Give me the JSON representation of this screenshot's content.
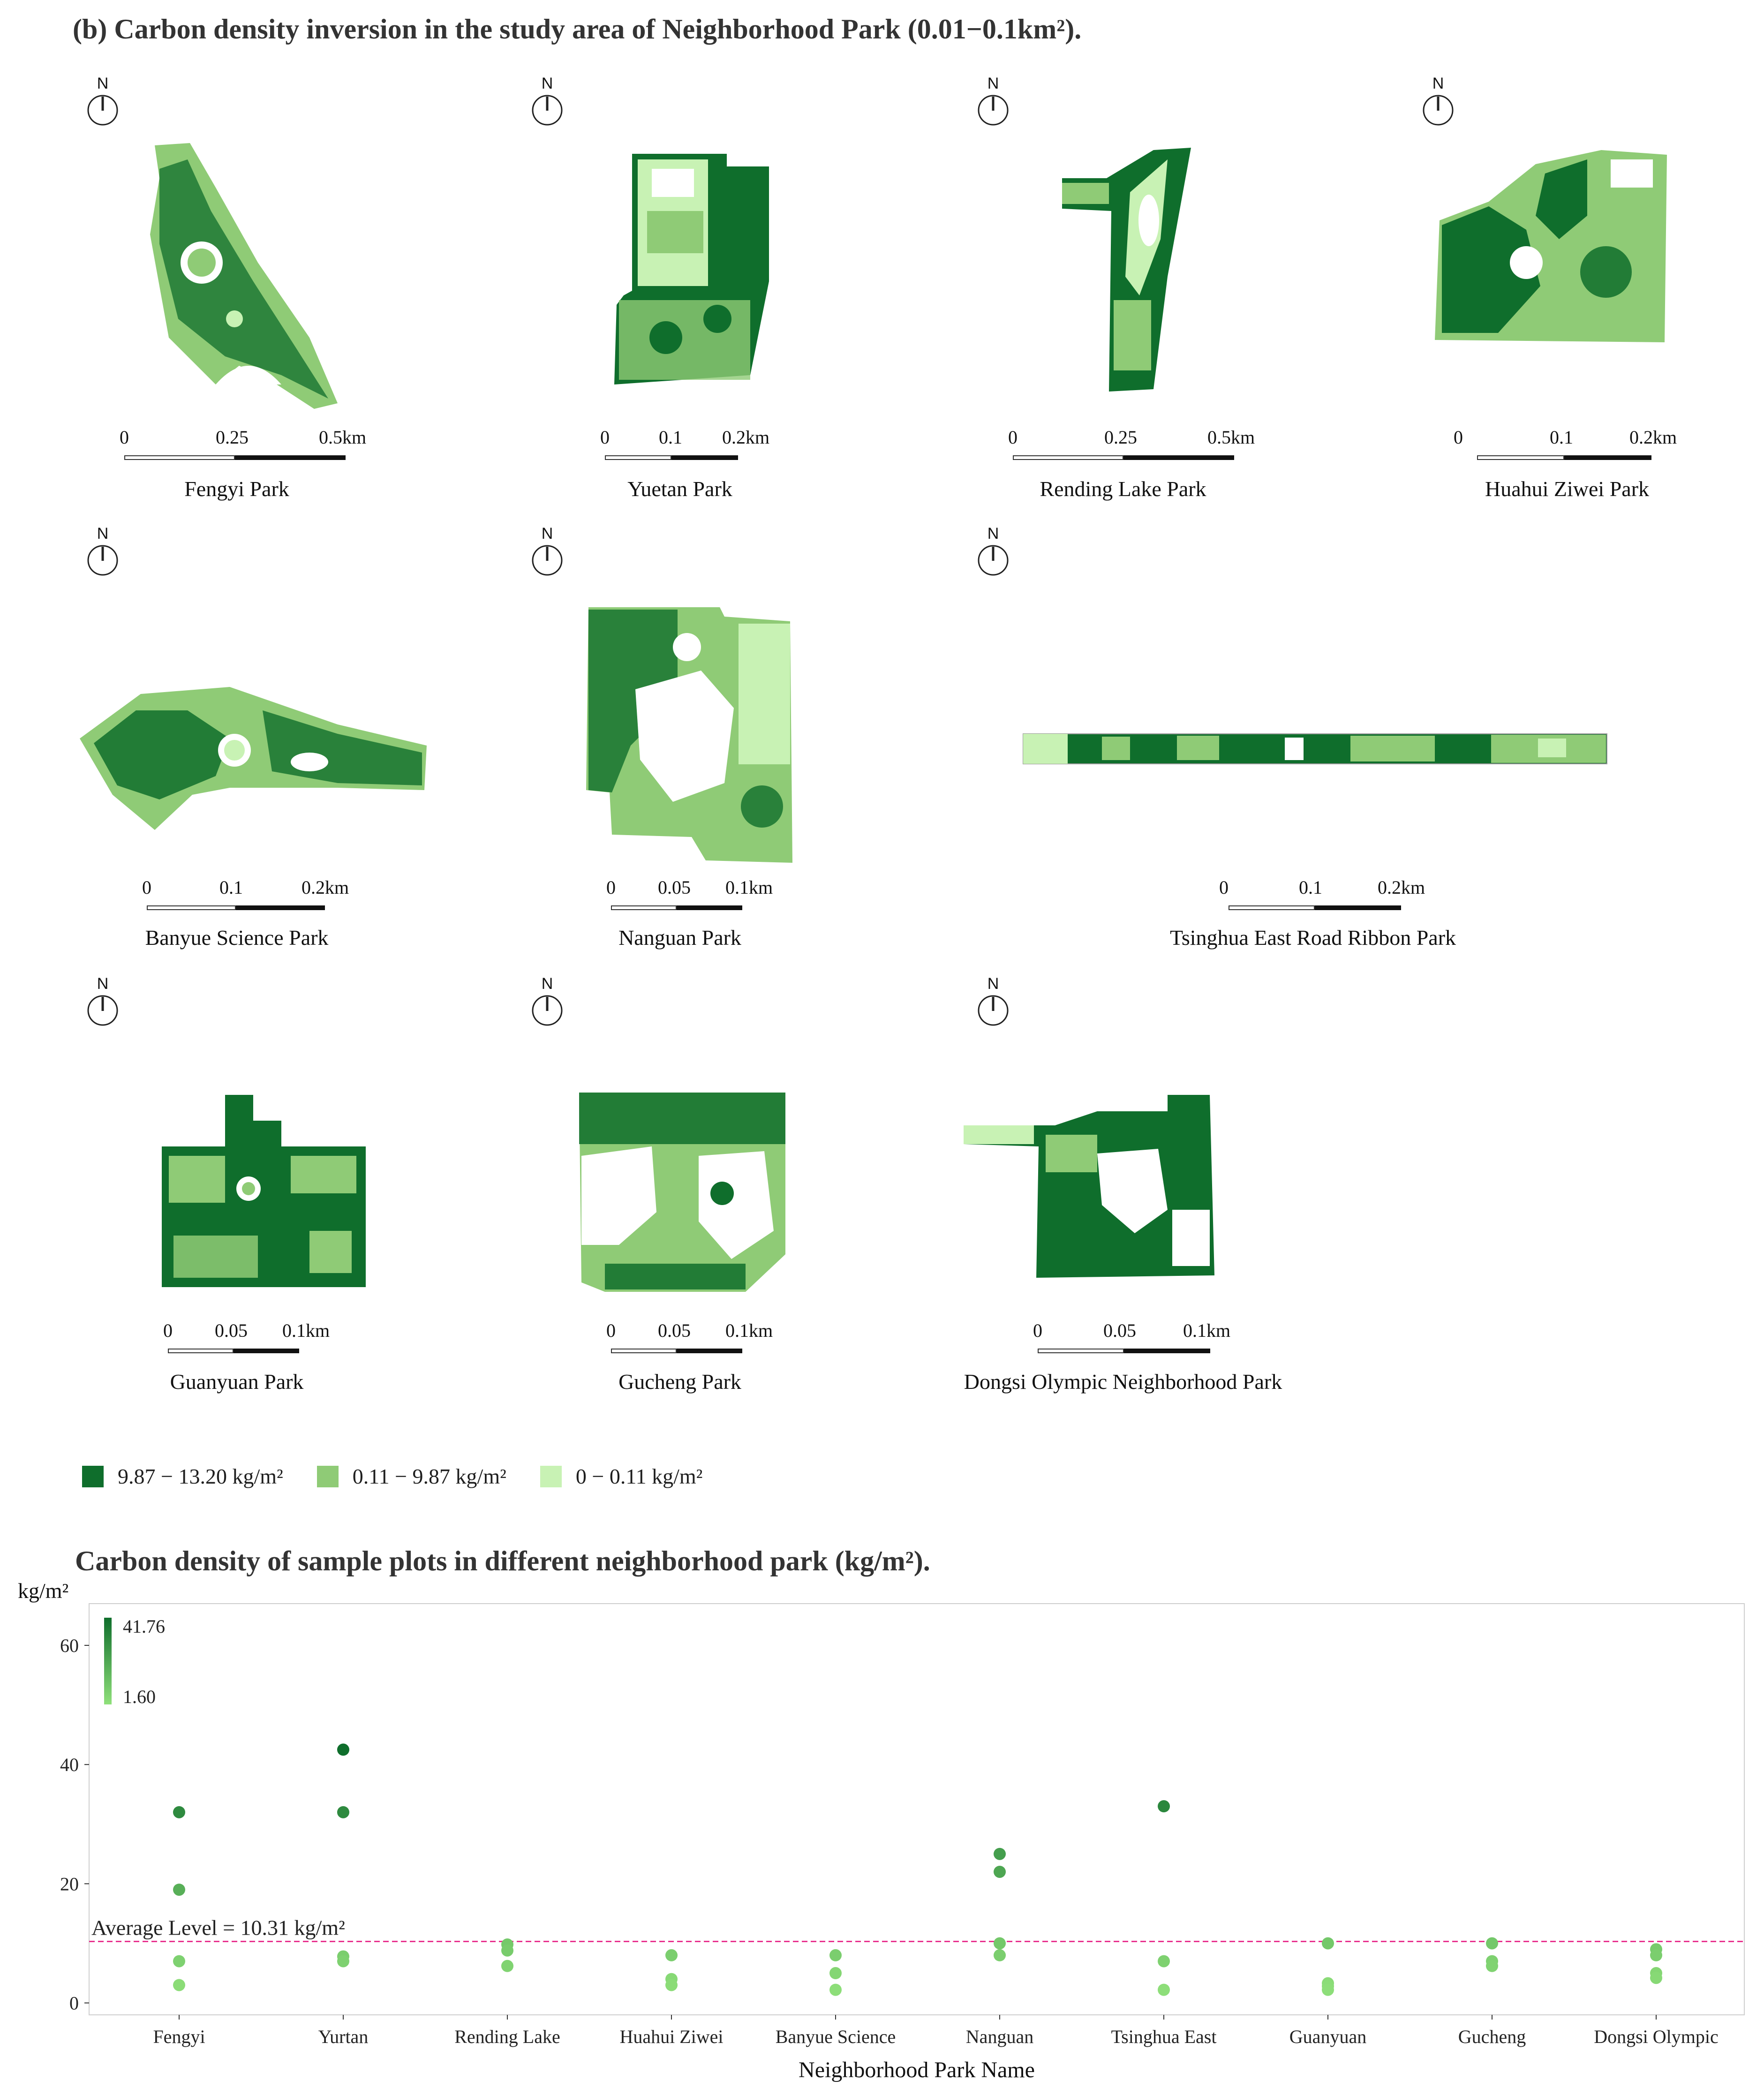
{
  "figure": {
    "title": "(b) Carbon density inversion in the study area of Neighborhood Park (0.01−0.1km²).",
    "north_label": "N"
  },
  "parks": [
    {
      "name": "Fengyi Park",
      "scale": [
        "0",
        "0.25",
        "0.5km"
      ]
    },
    {
      "name": "Yuetan Park",
      "scale": [
        "0",
        "0.1",
        "0.2km"
      ]
    },
    {
      "name": "Rending Lake Park",
      "scale": [
        "0",
        "0.25",
        "0.5km"
      ]
    },
    {
      "name": "Huahui Ziwei Park",
      "scale": [
        "0",
        "0.1",
        "0.2km"
      ]
    },
    {
      "name": "Banyue Science Park",
      "scale": [
        "0",
        "0.1",
        "0.2km"
      ]
    },
    {
      "name": "Nanguan Park",
      "scale": [
        "0",
        "0.05",
        "0.1km"
      ]
    },
    {
      "name": "Tsinghua East Road Ribbon Park",
      "scale": [
        "0",
        "0.1",
        "0.2km"
      ]
    },
    {
      "name": "Guanyuan Park",
      "scale": [
        "0",
        "0.05",
        "0.1km"
      ]
    },
    {
      "name": "Gucheng Park",
      "scale": [
        "0",
        "0.05",
        "0.1km"
      ]
    },
    {
      "name": "Dongsi Olympic Neighborhood Park",
      "scale": [
        "0",
        "0.05",
        "0.1km"
      ]
    }
  ],
  "map_legend": [
    {
      "label": "9.87 − 13.20 kg/m²",
      "color": "#0f6e2c"
    },
    {
      "label": "0.11 − 9.87 kg/m²",
      "color": "#8fcb76"
    },
    {
      "label": "0 − 0.11 kg/m²",
      "color": "#c8f2b4"
    }
  ],
  "colors": {
    "dark": "#0f6e2c",
    "mid": "#8fcb76",
    "light": "#c8f2b4"
  },
  "chart_data": {
    "type": "scatter",
    "title": "Carbon density of sample plots in different neighborhood park (kg/m²).",
    "ylabel": "kg/m²",
    "xlabel": "Neighborhood Park Name",
    "categories": [
      "Fengyi",
      "Yurtan",
      "Rending Lake",
      "Huahui Ziwei",
      "Banyue Science",
      "Nanguan",
      "Tsinghua East",
      "Guanyuan",
      "Gucheng",
      "Dongsi Olympic"
    ],
    "points": [
      {
        "category": "Fengyi",
        "values": [
          32.0,
          19.0,
          7.0,
          3.0
        ]
      },
      {
        "category": "Yurtan",
        "values": [
          42.5,
          32.0,
          7.8,
          7.0
        ]
      },
      {
        "category": "Rending Lake",
        "values": [
          9.8,
          8.8,
          6.2
        ]
      },
      {
        "category": "Huahui Ziwei",
        "values": [
          8.0,
          4.0,
          3.0
        ]
      },
      {
        "category": "Banyue Science",
        "values": [
          8.0,
          5.0,
          2.2
        ]
      },
      {
        "category": "Nanguan",
        "values": [
          25.0,
          22.0,
          10.0,
          8.0
        ]
      },
      {
        "category": "Tsinghua East",
        "values": [
          33.0,
          7.0,
          2.2
        ]
      },
      {
        "category": "Guanyuan",
        "values": [
          10.0,
          3.3,
          2.8,
          2.2
        ]
      },
      {
        "category": "Gucheng",
        "values": [
          10.0,
          7.0,
          6.2
        ]
      },
      {
        "category": "Dongsi Olympic",
        "values": [
          9.0,
          8.0,
          5.0,
          4.2
        ]
      }
    ],
    "ylim": [
      -2,
      67
    ],
    "yticks": [
      0,
      20,
      40,
      60
    ],
    "average": {
      "value": 10.31,
      "label": "Average Level = 10.31 kg/m²",
      "color": "#e8338f"
    },
    "colorbar": {
      "max_label": "41.76",
      "min_label": "1.60",
      "min": 1.6,
      "max": 41.76,
      "high_color": "#0f6e2c",
      "low_color": "#8fe07a"
    },
    "grid": false
  }
}
